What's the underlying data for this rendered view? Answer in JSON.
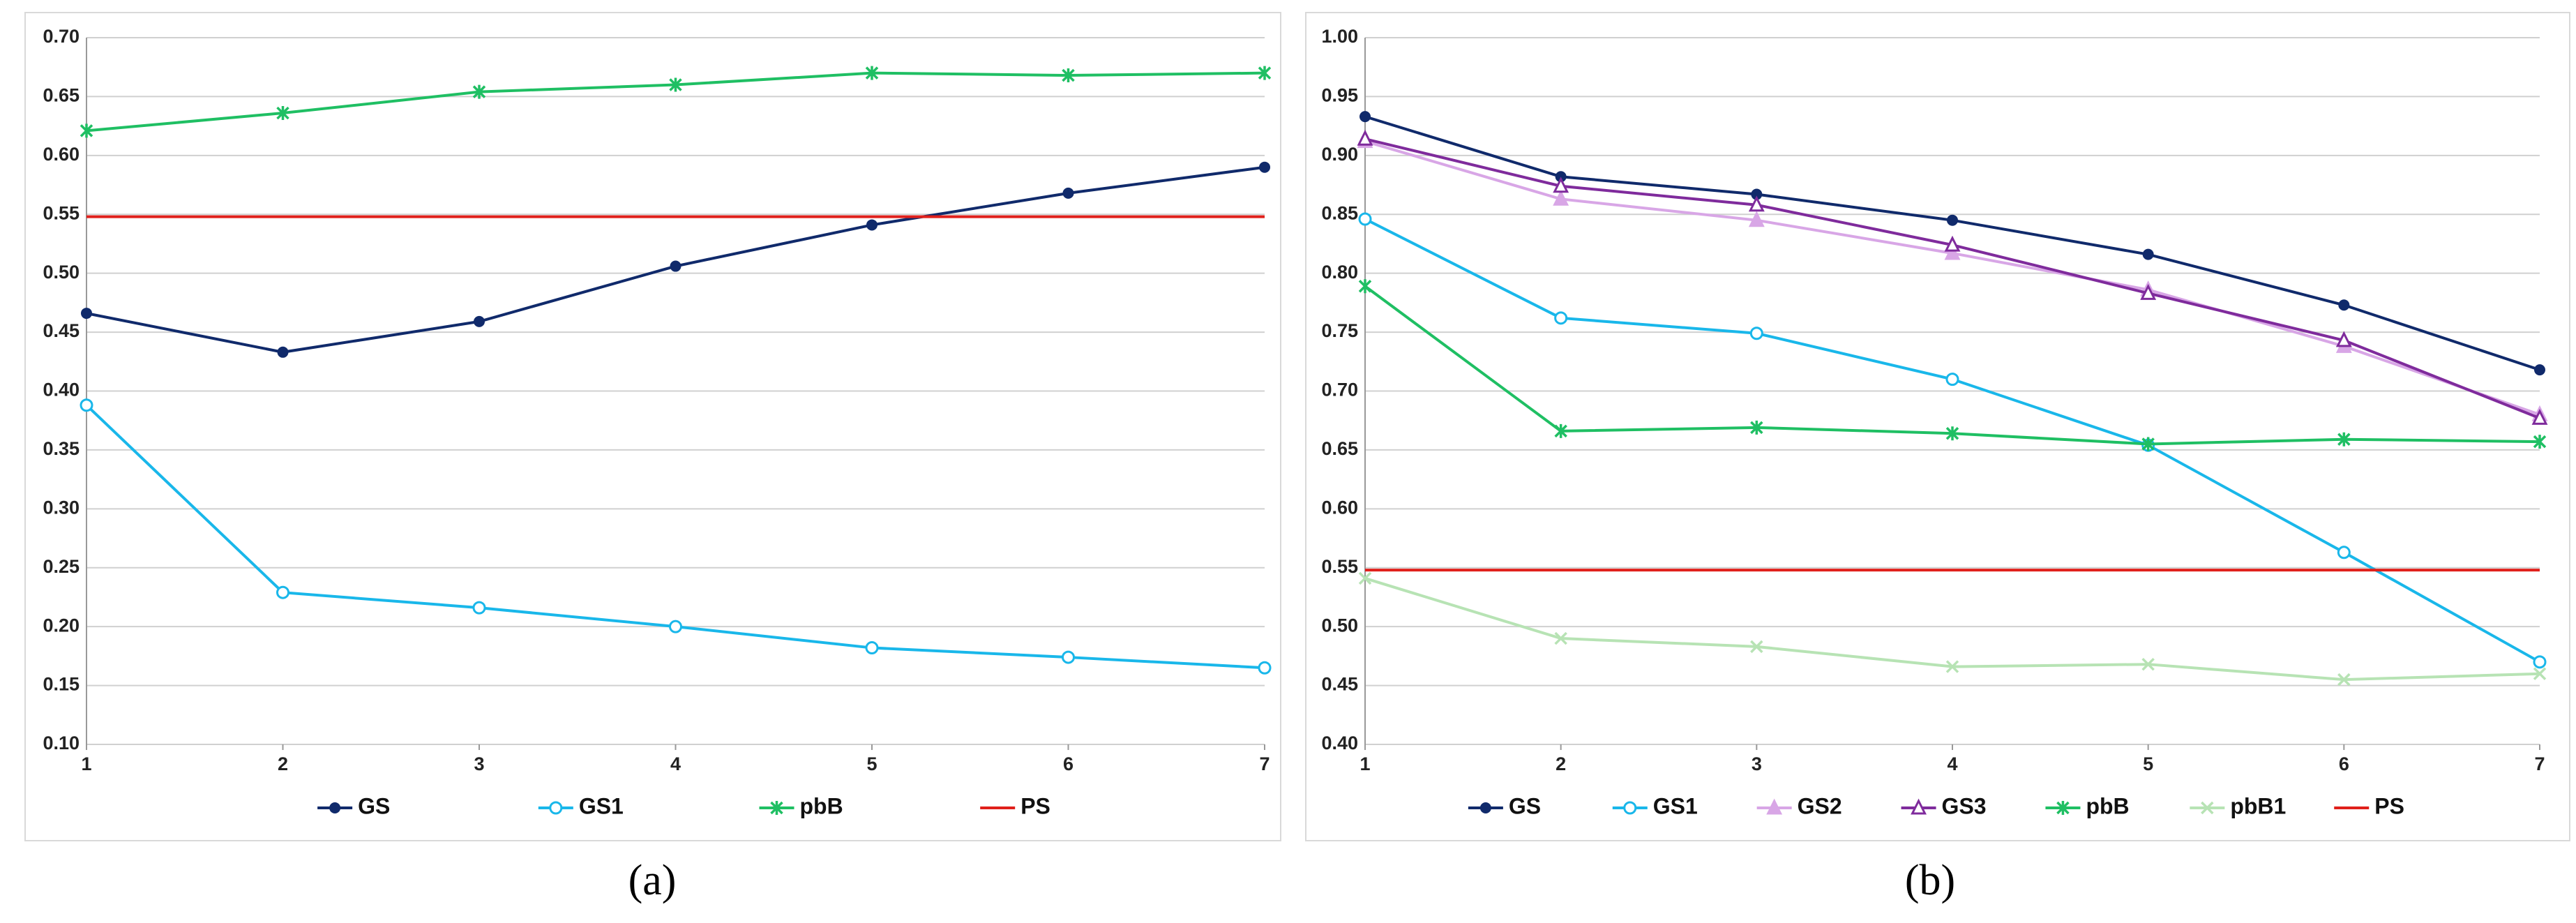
{
  "chart_data": [
    {
      "type": "line",
      "caption": "(a)",
      "x": [
        1,
        2,
        3,
        4,
        5,
        6,
        7
      ],
      "xlim": [
        1,
        7
      ],
      "xticks": [
        1,
        2,
        3,
        4,
        5,
        6,
        7
      ],
      "ylim": [
        0.1,
        0.7
      ],
      "yticks": [
        {
          "value": 0.1,
          "label": "0.10"
        },
        {
          "value": 0.15,
          "label": "0.15"
        },
        {
          "value": 0.2,
          "label": "0.20"
        },
        {
          "value": 0.25,
          "label": "0.25"
        },
        {
          "value": 0.3,
          "label": "0.30"
        },
        {
          "value": 0.35,
          "label": "0.35"
        },
        {
          "value": 0.4,
          "label": "0.40"
        },
        {
          "value": 0.45,
          "label": "0.45"
        },
        {
          "value": 0.5,
          "label": "0.50"
        },
        {
          "value": 0.55,
          "label": "0.55"
        },
        {
          "value": 0.6,
          "label": "0.60"
        },
        {
          "value": 0.65,
          "label": "0.65"
        },
        {
          "value": 0.7,
          "label": "0.70"
        }
      ],
      "grid": true,
      "legend": "bottom",
      "series": [
        {
          "name": "GS",
          "color": "#102a6b",
          "marker": "dot",
          "values": [
            0.466,
            0.433,
            0.459,
            0.506,
            0.541,
            0.568,
            0.59
          ]
        },
        {
          "name": "GS1",
          "color": "#19b7ea",
          "marker": "circle",
          "values": [
            0.388,
            0.229,
            0.216,
            0.2,
            0.182,
            0.174,
            0.165
          ]
        },
        {
          "name": "pbB",
          "color": "#1fbf63",
          "marker": "star",
          "values": [
            0.621,
            0.636,
            0.654,
            0.66,
            0.67,
            0.668,
            0.67
          ]
        },
        {
          "name": "PS",
          "color": "#e0201b",
          "marker": "none",
          "values": [
            0.548,
            0.548,
            0.548,
            0.548,
            0.548,
            0.548,
            0.548
          ]
        }
      ]
    },
    {
      "type": "line",
      "caption": "(b)",
      "x": [
        1,
        2,
        3,
        4,
        5,
        6,
        7
      ],
      "xlim": [
        1,
        7
      ],
      "xticks": [
        1,
        2,
        3,
        4,
        5,
        6,
        7
      ],
      "ylim": [
        0.4,
        1.0
      ],
      "yticks": [
        {
          "value": 0.4,
          "label": "0.40"
        },
        {
          "value": 0.45,
          "label": "0.45"
        },
        {
          "value": 0.5,
          "label": "0.50"
        },
        {
          "value": 0.55,
          "label": "0.55"
        },
        {
          "value": 0.6,
          "label": "0.60"
        },
        {
          "value": 0.65,
          "label": "0.65"
        },
        {
          "value": 0.7,
          "label": "0.70"
        },
        {
          "value": 0.75,
          "label": "0.75"
        },
        {
          "value": 0.8,
          "label": "0.80"
        },
        {
          "value": 0.85,
          "label": "0.85"
        },
        {
          "value": 0.9,
          "label": "0.90"
        },
        {
          "value": 0.95,
          "label": "0.95"
        },
        {
          "value": 1.0,
          "label": "1.00"
        }
      ],
      "grid": true,
      "legend": "bottom",
      "series": [
        {
          "name": "GS",
          "color": "#102a6b",
          "marker": "dot",
          "values": [
            0.933,
            0.882,
            0.867,
            0.845,
            0.816,
            0.773,
            0.718
          ]
        },
        {
          "name": "GS1",
          "color": "#19b7ea",
          "marker": "circle",
          "values": [
            0.846,
            0.762,
            0.749,
            0.71,
            0.654,
            0.563,
            0.47
          ]
        },
        {
          "name": "GS2",
          "color": "#d8a6e6",
          "marker": "triangle-filled",
          "values": [
            0.912,
            0.863,
            0.845,
            0.817,
            0.786,
            0.738,
            0.68
          ]
        },
        {
          "name": "GS3",
          "color": "#7f2b9c",
          "marker": "triangle",
          "values": [
            0.914,
            0.874,
            0.858,
            0.824,
            0.783,
            0.743,
            0.677
          ]
        },
        {
          "name": "pbB",
          "color": "#1fbf63",
          "marker": "star",
          "values": [
            0.789,
            0.666,
            0.669,
            0.664,
            0.655,
            0.659,
            0.657
          ]
        },
        {
          "name": "pbB1",
          "color": "#b7e3b4",
          "marker": "cross",
          "values": [
            0.541,
            0.49,
            0.483,
            0.466,
            0.468,
            0.455,
            0.46
          ]
        },
        {
          "name": "PS",
          "color": "#e0201b",
          "marker": "none",
          "values": [
            0.548,
            0.548,
            0.548,
            0.548,
            0.548,
            0.548,
            0.548
          ]
        }
      ]
    }
  ]
}
